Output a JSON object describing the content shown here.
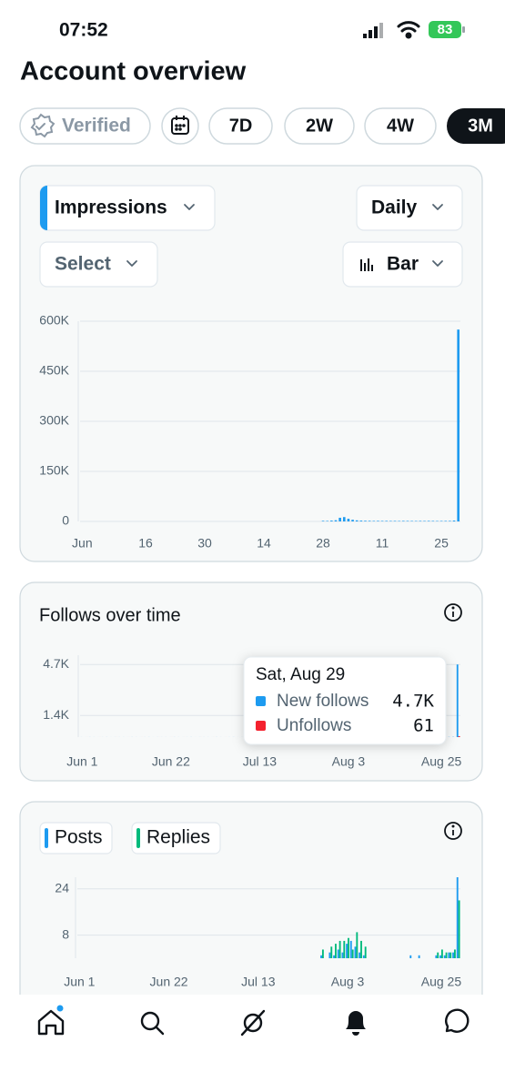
{
  "status_bar": {
    "time": "07:52",
    "battery": "83"
  },
  "header": {
    "title": "Account overview"
  },
  "filters": {
    "verified": "Verified",
    "ranges": [
      "7D",
      "2W",
      "4W",
      "3M"
    ]
  },
  "impressions_card": {
    "metric": "Impressions",
    "interval": "Daily",
    "compare": "Select",
    "chart_style": "Bar"
  },
  "follows_card": {
    "title": "Follows over time",
    "tooltip": {
      "title": "Sat, Aug 29",
      "labels": [
        "4.7K",
        "61"
      ]
    }
  },
  "chart_data": [
    {
      "type": "bar",
      "color": "#1d9bf0",
      "grid": true,
      "categories": [
        "Jun",
        null,
        null,
        null,
        null,
        null,
        null,
        null,
        null,
        null,
        null,
        null,
        null,
        null,
        null,
        "16",
        null,
        null,
        null,
        null,
        null,
        null,
        null,
        null,
        null,
        null,
        null,
        null,
        null,
        "30",
        null,
        null,
        null,
        null,
        null,
        null,
        null,
        null,
        null,
        null,
        null,
        null,
        null,
        "14",
        null,
        null,
        null,
        null,
        null,
        null,
        null,
        null,
        null,
        null,
        null,
        null,
        null,
        "28",
        null,
        null,
        null,
        null,
        null,
        null,
        null,
        null,
        null,
        null,
        null,
        null,
        null,
        "11",
        null,
        null,
        null,
        null,
        null,
        null,
        null,
        null,
        null,
        null,
        null,
        null,
        null,
        "25",
        null,
        null,
        null,
        null
      ],
      "values": [
        0,
        0,
        0,
        0,
        0,
        0,
        0,
        0,
        0,
        0,
        0,
        0,
        0,
        0,
        0,
        0,
        0,
        0,
        0,
        0,
        0,
        0,
        0,
        0,
        0,
        0,
        0,
        0,
        0,
        0,
        0,
        0,
        0,
        0,
        0,
        0,
        0,
        0,
        0,
        0,
        0,
        0,
        0,
        0,
        0,
        0,
        0,
        0,
        0,
        0,
        0,
        0,
        0,
        0,
        0,
        0,
        0,
        1800,
        1500,
        2500,
        3500,
        11000,
        13000,
        8000,
        5000,
        3200,
        2400,
        2000,
        1800,
        1500,
        1700,
        1500,
        1600,
        1400,
        1500,
        1300,
        1600,
        1500,
        1400,
        1300,
        1500,
        1400,
        1600,
        1500,
        1300,
        1400,
        1500,
        1600,
        2600,
        575000
      ],
      "ylim": [
        0,
        600000
      ],
      "yticks": [
        0,
        {
          "value": 150000,
          "label": "150K"
        },
        {
          "value": 300000,
          "label": "300K"
        },
        {
          "value": 450000,
          "label": "450K"
        },
        {
          "value": 600000,
          "label": "600K"
        }
      ]
    },
    {
      "type": "bar",
      "title": "Follows over time",
      "grid": true,
      "categories": [
        "Jun 1",
        null,
        null,
        null,
        null,
        null,
        null,
        null,
        null,
        null,
        null,
        null,
        null,
        null,
        null,
        null,
        null,
        null,
        null,
        null,
        null,
        "Jun 22",
        null,
        null,
        null,
        null,
        null,
        null,
        null,
        null,
        null,
        null,
        null,
        null,
        null,
        null,
        null,
        null,
        null,
        null,
        null,
        null,
        "Jul 13",
        null,
        null,
        null,
        null,
        null,
        null,
        null,
        null,
        null,
        null,
        null,
        null,
        null,
        null,
        null,
        null,
        null,
        null,
        null,
        null,
        "Aug 3",
        null,
        null,
        null,
        null,
        null,
        null,
        null,
        null,
        null,
        null,
        null,
        null,
        null,
        null,
        null,
        null,
        null,
        null,
        null,
        null,
        null,
        "Aug 25",
        null,
        null,
        null,
        null
      ],
      "series": [
        {
          "name": "New follows",
          "color": "#1d9bf0",
          "values": [
            2,
            1,
            3,
            2,
            1,
            2,
            3,
            1,
            2,
            2,
            2,
            1,
            3,
            2,
            1,
            2,
            3,
            1,
            2,
            2,
            2,
            1,
            3,
            2,
            1,
            2,
            3,
            1,
            2,
            2,
            2,
            1,
            3,
            2,
            1,
            2,
            3,
            1,
            2,
            2,
            2,
            1,
            3,
            2,
            1,
            2,
            3,
            1,
            2,
            2,
            2,
            1,
            3,
            2,
            1,
            2,
            3,
            12,
            10,
            15,
            20,
            38,
            42,
            30,
            22,
            18,
            14,
            12,
            10,
            9,
            10,
            9,
            8,
            9,
            8,
            7,
            9,
            8,
            7,
            8,
            8,
            9,
            7,
            8,
            9,
            8,
            9,
            10,
            14,
            4700
          ]
        },
        {
          "name": "Unfollows",
          "color": "#f4212e",
          "values": [
            0,
            1,
            0,
            0,
            1,
            0,
            0,
            0,
            1,
            0,
            0,
            1,
            0,
            0,
            1,
            0,
            0,
            0,
            1,
            0,
            0,
            1,
            0,
            0,
            1,
            0,
            0,
            0,
            1,
            0,
            0,
            1,
            0,
            0,
            1,
            0,
            0,
            0,
            1,
            0,
            0,
            1,
            0,
            0,
            1,
            0,
            0,
            0,
            1,
            0,
            0,
            1,
            0,
            0,
            1,
            0,
            0,
            1,
            0,
            1,
            1,
            2,
            2,
            1,
            1,
            1,
            0,
            1,
            1,
            0,
            1,
            0,
            1,
            1,
            0,
            1,
            0,
            1,
            1,
            0,
            1,
            0,
            1,
            1,
            0,
            1,
            1,
            0,
            1,
            61
          ]
        }
      ],
      "ylim": [
        0,
        5300
      ],
      "yticks": [
        {
          "value": 1400,
          "label": "1.4K"
        },
        {
          "value": 4700,
          "label": "4.7K"
        }
      ]
    },
    {
      "type": "bar",
      "grid": true,
      "categories": [
        "Jun 1",
        null,
        null,
        null,
        null,
        null,
        null,
        null,
        null,
        null,
        null,
        null,
        null,
        null,
        null,
        null,
        null,
        null,
        null,
        null,
        null,
        "Jun 22",
        null,
        null,
        null,
        null,
        null,
        null,
        null,
        null,
        null,
        null,
        null,
        null,
        null,
        null,
        null,
        null,
        null,
        null,
        null,
        null,
        "Jul 13",
        null,
        null,
        null,
        null,
        null,
        null,
        null,
        null,
        null,
        null,
        null,
        null,
        null,
        null,
        null,
        null,
        null,
        null,
        null,
        null,
        "Aug 3",
        null,
        null,
        null,
        null,
        null,
        null,
        null,
        null,
        null,
        null,
        null,
        null,
        null,
        null,
        null,
        null,
        null,
        null,
        null,
        null,
        null,
        "Aug 25",
        null,
        null,
        null,
        null
      ],
      "series": [
        {
          "name": "Posts",
          "color": "#1d9bf0",
          "values": [
            0,
            0,
            0,
            0,
            0,
            0,
            0,
            0,
            0,
            0,
            0,
            0,
            0,
            0,
            0,
            0,
            0,
            0,
            0,
            0,
            0,
            0,
            0,
            0,
            0,
            0,
            0,
            0,
            0,
            0,
            0,
            0,
            0,
            0,
            0,
            0,
            0,
            0,
            0,
            0,
            0,
            0,
            0,
            0,
            0,
            0,
            0,
            0,
            0,
            0,
            0,
            0,
            0,
            0,
            0,
            0,
            0,
            1,
            0,
            2,
            1,
            3,
            2,
            5,
            6,
            4,
            2,
            1,
            0,
            0,
            0,
            0,
            0,
            0,
            0,
            0,
            0,
            0,
            1,
            0,
            1,
            0,
            0,
            0,
            1,
            1,
            1,
            2,
            2,
            28
          ]
        },
        {
          "name": "Replies",
          "color": "#00ba7c",
          "values": [
            0,
            0,
            0,
            0,
            0,
            0,
            0,
            0,
            0,
            0,
            0,
            0,
            0,
            0,
            0,
            0,
            0,
            0,
            0,
            0,
            0,
            0,
            0,
            0,
            0,
            0,
            0,
            0,
            0,
            0,
            0,
            0,
            0,
            0,
            0,
            0,
            0,
            0,
            0,
            0,
            0,
            0,
            0,
            0,
            0,
            0,
            0,
            0,
            0,
            0,
            0,
            0,
            0,
            0,
            0,
            0,
            0,
            3,
            0,
            4,
            5,
            6,
            6,
            7,
            3,
            9,
            6,
            4,
            0,
            0,
            0,
            0,
            0,
            0,
            0,
            0,
            0,
            0,
            0,
            0,
            0,
            0,
            0,
            0,
            2,
            3,
            2,
            2,
            3,
            20
          ]
        }
      ],
      "ylim": [
        0,
        28
      ],
      "yticks": [
        8,
        24
      ]
    }
  ]
}
